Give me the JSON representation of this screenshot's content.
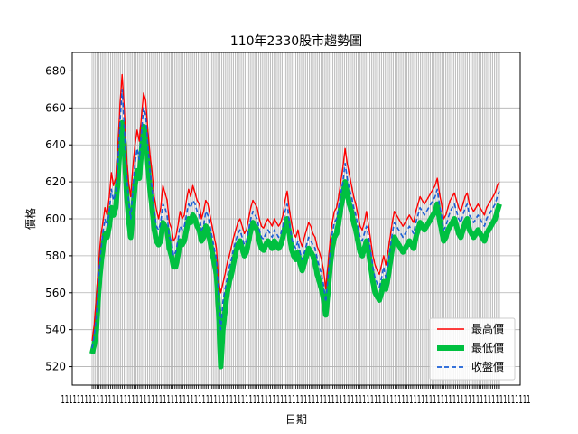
{
  "chart_data": {
    "type": "line",
    "title": "110年2330股市趨勢圖",
    "xlabel": "日期",
    "ylabel": "價格",
    "ylim": [
      510,
      690
    ],
    "yticks": [
      520,
      540,
      560,
      580,
      600,
      620,
      640,
      660,
      680
    ],
    "grid": true,
    "legend_position": "lower-right",
    "x_tick_count": 243,
    "series": [
      {
        "name": "最高價",
        "color": "#ff0000",
        "style": "solid",
        "values": [
          534,
          543,
          558,
          575,
          590,
          598,
          606,
          602,
          612,
          625,
          618,
          622,
          638,
          662,
          678,
          660,
          635,
          620,
          612,
          628,
          640,
          648,
          642,
          655,
          668,
          664,
          648,
          635,
          625,
          612,
          605,
          600,
          606,
          618,
          614,
          610,
          598,
          595,
          588,
          590,
          596,
          604,
          600,
          602,
          610,
          616,
          612,
          618,
          614,
          610,
          608,
          600,
          604,
          610,
          608,
          602,
          596,
          590,
          584,
          566,
          560,
          565,
          570,
          576,
          580,
          585,
          590,
          594,
          598,
          600,
          596,
          592,
          594,
          600,
          606,
          610,
          608,
          606,
          600,
          596,
          595,
          598,
          600,
          598,
          596,
          600,
          598,
          596,
          598,
          602,
          610,
          615,
          605,
          598,
          592,
          590,
          594,
          588,
          585,
          590,
          594,
          598,
          596,
          592,
          590,
          585,
          582,
          578,
          572,
          562,
          575,
          588,
          598,
          604,
          606,
          612,
          620,
          628,
          638,
          630,
          624,
          618,
          612,
          608,
          602,
          596,
          594,
          598,
          604,
          596,
          588,
          580,
          575,
          572,
          570,
          575,
          580,
          575,
          582,
          590,
          598,
          604,
          602,
          600,
          598,
          596,
          598,
          600,
          602,
          600,
          598,
          604,
          608,
          612,
          610,
          608,
          610,
          612,
          614,
          616,
          618,
          622,
          614,
          608,
          600,
          602,
          606,
          610,
          612,
          614,
          610,
          606,
          604,
          608,
          612,
          614,
          608,
          606,
          604,
          606,
          608,
          606,
          604,
          602,
          606,
          608,
          610,
          612,
          614,
          618,
          620
        ],
        "note": ""
      },
      {
        "name": "最低價",
        "color": "#00c040",
        "style": "solid-thick",
        "values": [
          527,
          532,
          540,
          560,
          574,
          584,
          592,
          590,
          596,
          606,
          602,
          606,
          620,
          640,
          652,
          640,
          615,
          600,
          590,
          604,
          618,
          626,
          622,
          636,
          650,
          648,
          630,
          616,
          606,
          594,
          588,
          586,
          588,
          598,
          596,
          594,
          584,
          580,
          574,
          574,
          580,
          588,
          586,
          588,
          594,
          600,
          598,
          602,
          600,
          596,
          594,
          588,
          590,
          596,
          594,
          588,
          582,
          576,
          570,
          550,
          520,
          540,
          550,
          560,
          566,
          570,
          576,
          582,
          586,
          588,
          584,
          580,
          582,
          588,
          594,
          598,
          596,
          594,
          588,
          584,
          583,
          586,
          588,
          586,
          584,
          588,
          586,
          584,
          586,
          590,
          596,
          600,
          592,
          584,
          580,
          578,
          582,
          576,
          572,
          576,
          580,
          584,
          582,
          580,
          576,
          570,
          566,
          562,
          556,
          548,
          560,
          574,
          584,
          590,
          592,
          598,
          606,
          612,
          620,
          614,
          608,
          604,
          598,
          594,
          588,
          582,
          580,
          584,
          588,
          582,
          574,
          566,
          560,
          558,
          556,
          560,
          566,
          562,
          568,
          576,
          584,
          590,
          588,
          586,
          584,
          582,
          584,
          586,
          588,
          586,
          584,
          590,
          594,
          598,
          596,
          594,
          596,
          598,
          600,
          602,
          604,
          608,
          600,
          594,
          588,
          590,
          594,
          596,
          598,
          600,
          596,
          592,
          590,
          594,
          598,
          600,
          594,
          592,
          590,
          592,
          594,
          592,
          590,
          588,
          592,
          594,
          596,
          598,
          600,
          604,
          608
        ],
        "note": ""
      },
      {
        "name": "收盤價",
        "color": "#1a5fd6",
        "style": "dashed",
        "values": [
          530,
          537,
          548,
          568,
          582,
          592,
          600,
          596,
          604,
          616,
          610,
          614,
          630,
          652,
          670,
          650,
          625,
          610,
          600,
          616,
          630,
          638,
          632,
          646,
          660,
          656,
          640,
          626,
          616,
          604,
          596,
          594,
          598,
          608,
          606,
          602,
          590,
          588,
          580,
          582,
          588,
          596,
          594,
          596,
          602,
          608,
          606,
          610,
          608,
          604,
          602,
          594,
          596,
          604,
          602,
          596,
          590,
          584,
          578,
          558,
          540,
          555,
          562,
          568,
          574,
          578,
          584,
          588,
          592,
          594,
          590,
          586,
          588,
          594,
          600,
          604,
          602,
          600,
          594,
          590,
          589,
          592,
          594,
          592,
          590,
          594,
          592,
          590,
          592,
          596,
          604,
          608,
          598,
          590,
          586,
          584,
          588,
          582,
          578,
          582,
          586,
          590,
          588,
          586,
          584,
          578,
          574,
          570,
          564,
          555,
          568,
          582,
          592,
          598,
          600,
          606,
          614,
          620,
          630,
          622,
          616,
          612,
          606,
          602,
          596,
          590,
          588,
          592,
          596,
          590,
          582,
          574,
          568,
          565,
          563,
          568,
          574,
          568,
          575,
          584,
          592,
          598,
          596,
          594,
          592,
          590,
          592,
          594,
          596,
          594,
          592,
          598,
          602,
          606,
          604,
          602,
          604,
          606,
          608,
          610,
          612,
          616,
          608,
          602,
          594,
          596,
          600,
          604,
          606,
          608,
          604,
          600,
          598,
          602,
          606,
          608,
          602,
          600,
          598,
          600,
          602,
          600,
          598,
          596,
          600,
          602,
          604,
          606,
          608,
          612,
          615
        ],
        "note": ""
      }
    ]
  },
  "legend": {
    "items": [
      {
        "label": "最高價",
        "color": "#ff0000"
      },
      {
        "label": "最低價",
        "color": "#00c040"
      },
      {
        "label": "收盤價",
        "color": "#1a5fd6"
      }
    ]
  }
}
